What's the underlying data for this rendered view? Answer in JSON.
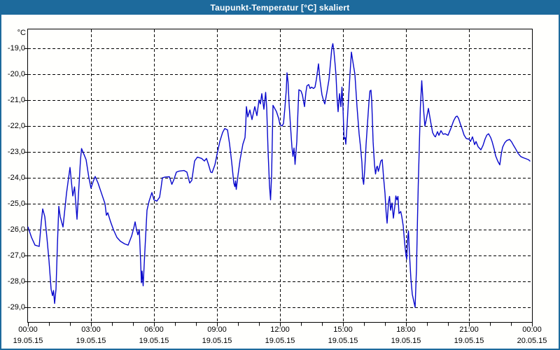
{
  "window": {
    "title": "Taupunkt-Temperatur [°C] skaliert",
    "titlebar_color": "#1d6a9c",
    "frame_color": "#1d6a9c",
    "background_color": "#fffffd"
  },
  "chart_data": {
    "type": "line",
    "title": "Taupunkt-Temperatur [°C] skaliert",
    "grid": {
      "style": "dashed",
      "color": "#000000"
    },
    "legend": "none",
    "series": [
      {
        "name": "Taupunkt-Temperatur",
        "color": "#0808cc"
      }
    ],
    "x_axis": {
      "range_hours": [
        0,
        24
      ],
      "major_tick_every_hours": 3,
      "minor_tick_every_hours": 1,
      "ticks": [
        {
          "time": "00:00",
          "date": "19.05.15"
        },
        {
          "time": "03:00",
          "date": "19.05.15"
        },
        {
          "time": "06:00",
          "date": "19.05.15"
        },
        {
          "time": "09:00",
          "date": "19.05.15"
        },
        {
          "time": "12:00",
          "date": "19.05.15"
        },
        {
          "time": "15:00",
          "date": "19.05.15"
        },
        {
          "time": "18:00",
          "date": "19.05.15"
        },
        {
          "time": "21:00",
          "date": "19.05.15"
        },
        {
          "time": "00:00",
          "date": "20.05.15"
        }
      ]
    },
    "y_axis": {
      "unit": "°C",
      "tick_labels": [
        "-19,0",
        "-20,0",
        "-21,0",
        "-22,0",
        "-23,0",
        "-24,0",
        "-25,0",
        "-26,0",
        "-27,0",
        "-28,0",
        "-29,0"
      ],
      "tick_values": [
        -19,
        -20,
        -21,
        -22,
        -23,
        -24,
        -25,
        -26,
        -27,
        -28,
        -29
      ],
      "ylim": [
        -29.6,
        -18.25
      ]
    },
    "points_minutes_temp": [
      [
        0,
        -25.9
      ],
      [
        10,
        -26.3
      ],
      [
        20,
        -26.6
      ],
      [
        32,
        -26.65
      ],
      [
        38,
        -25.7
      ],
      [
        42,
        -25.2
      ],
      [
        48,
        -25.5
      ],
      [
        54,
        -26.3
      ],
      [
        60,
        -27.2
      ],
      [
        66,
        -28.3
      ],
      [
        70,
        -28.55
      ],
      [
        73,
        -28.35
      ],
      [
        76,
        -28.85
      ],
      [
        80,
        -28.3
      ],
      [
        84,
        -26.6
      ],
      [
        88,
        -25.1
      ],
      [
        92,
        -25.5
      ],
      [
        100,
        -25.9
      ],
      [
        110,
        -24.6
      ],
      [
        120,
        -23.6
      ],
      [
        128,
        -24.7
      ],
      [
        133,
        -24.35
      ],
      [
        140,
        -25.6
      ],
      [
        150,
        -23.3
      ],
      [
        153,
        -22.87
      ],
      [
        160,
        -23.1
      ],
      [
        166,
        -23.3
      ],
      [
        174,
        -24.0
      ],
      [
        180,
        -24.4
      ],
      [
        186,
        -24.15
      ],
      [
        192,
        -23.95
      ],
      [
        200,
        -24.2
      ],
      [
        210,
        -24.6
      ],
      [
        220,
        -25.0
      ],
      [
        224,
        -25.45
      ],
      [
        228,
        -25.35
      ],
      [
        236,
        -25.7
      ],
      [
        244,
        -26.0
      ],
      [
        254,
        -26.3
      ],
      [
        264,
        -26.45
      ],
      [
        276,
        -26.55
      ],
      [
        286,
        -26.6
      ],
      [
        296,
        -26.25
      ],
      [
        302,
        -25.95
      ],
      [
        306,
        -25.7
      ],
      [
        310,
        -26.0
      ],
      [
        314,
        -26.2
      ],
      [
        318,
        -26.0
      ],
      [
        322,
        -27.3
      ],
      [
        324,
        -28.05
      ],
      [
        326,
        -27.6
      ],
      [
        329,
        -28.17
      ],
      [
        334,
        -26.8
      ],
      [
        340,
        -25.25
      ],
      [
        346,
        -24.9
      ],
      [
        354,
        -24.57
      ],
      [
        360,
        -24.85
      ],
      [
        368,
        -24.9
      ],
      [
        376,
        -24.75
      ],
      [
        380,
        -24.4
      ],
      [
        384,
        -24.0
      ],
      [
        392,
        -23.97
      ],
      [
        404,
        -23.96
      ],
      [
        411,
        -24.25
      ],
      [
        416,
        -24.1
      ],
      [
        424,
        -23.78
      ],
      [
        432,
        -23.74
      ],
      [
        446,
        -23.72
      ],
      [
        454,
        -23.78
      ],
      [
        462,
        -24.2
      ],
      [
        468,
        -24.1
      ],
      [
        476,
        -23.35
      ],
      [
        484,
        -23.2
      ],
      [
        496,
        -23.25
      ],
      [
        504,
        -23.35
      ],
      [
        510,
        -23.25
      ],
      [
        516,
        -23.5
      ],
      [
        522,
        -23.78
      ],
      [
        526,
        -23.8
      ],
      [
        534,
        -23.5
      ],
      [
        540,
        -23.1
      ],
      [
        548,
        -22.6
      ],
      [
        556,
        -22.25
      ],
      [
        562,
        -22.1
      ],
      [
        570,
        -22.15
      ],
      [
        576,
        -22.7
      ],
      [
        582,
        -23.4
      ],
      [
        588,
        -24.2
      ],
      [
        591,
        -24.34
      ],
      [
        593,
        -24.12
      ],
      [
        595,
        -24.45
      ],
      [
        600,
        -23.9
      ],
      [
        606,
        -23.3
      ],
      [
        614,
        -22.7
      ],
      [
        620,
        -22.45
      ],
      [
        622,
        -22.0
      ],
      [
        624,
        -21.25
      ],
      [
        628,
        -21.65
      ],
      [
        634,
        -21.38
      ],
      [
        640,
        -21.75
      ],
      [
        648,
        -21.25
      ],
      [
        654,
        -21.6
      ],
      [
        660,
        -21.0
      ],
      [
        664,
        -21.15
      ],
      [
        668,
        -20.75
      ],
      [
        674,
        -21.35
      ],
      [
        679,
        -20.7
      ],
      [
        682,
        -21.3
      ],
      [
        686,
        -23.0
      ],
      [
        690,
        -24.3
      ],
      [
        693,
        -24.85
      ],
      [
        696,
        -23.9
      ],
      [
        700,
        -21.2
      ],
      [
        704,
        -21.3
      ],
      [
        710,
        -21.45
      ],
      [
        716,
        -21.7
      ],
      [
        720,
        -21.95
      ],
      [
        726,
        -22.0
      ],
      [
        730,
        -21.9
      ],
      [
        734,
        -21.3
      ],
      [
        738,
        -20.6
      ],
      [
        740,
        -19.95
      ],
      [
        743,
        -20.3
      ],
      [
        746,
        -21.15
      ],
      [
        750,
        -22.0
      ],
      [
        754,
        -22.8
      ],
      [
        757,
        -23.17
      ],
      [
        760,
        -22.85
      ],
      [
        763,
        -23.48
      ],
      [
        768,
        -22.6
      ],
      [
        772,
        -21.2
      ],
      [
        774,
        -20.6
      ],
      [
        780,
        -20.65
      ],
      [
        784,
        -20.8
      ],
      [
        790,
        -21.25
      ],
      [
        794,
        -20.7
      ],
      [
        797,
        -20.45
      ],
      [
        802,
        -20.4
      ],
      [
        806,
        -20.55
      ],
      [
        810,
        -20.5
      ],
      [
        816,
        -20.55
      ],
      [
        820,
        -20.5
      ],
      [
        824,
        -20.2
      ],
      [
        830,
        -19.6
      ],
      [
        834,
        -20.2
      ],
      [
        840,
        -20.8
      ],
      [
        844,
        -21.0
      ],
      [
        848,
        -21.15
      ],
      [
        854,
        -20.7
      ],
      [
        860,
        -20.2
      ],
      [
        864,
        -19.6
      ],
      [
        868,
        -19.0
      ],
      [
        871,
        -18.82
      ],
      [
        874,
        -19.1
      ],
      [
        878,
        -19.7
      ],
      [
        880,
        -20.05
      ],
      [
        883,
        -20.9
      ],
      [
        886,
        -21.45
      ],
      [
        890,
        -20.75
      ],
      [
        894,
        -21.25
      ],
      [
        897,
        -20.5
      ],
      [
        900,
        -21.3
      ],
      [
        903,
        -22.5
      ],
      [
        906,
        -22.45
      ],
      [
        908,
        -22.7
      ],
      [
        912,
        -21.9
      ],
      [
        916,
        -20.9
      ],
      [
        920,
        -20.0
      ],
      [
        924,
        -19.15
      ],
      [
        928,
        -19.5
      ],
      [
        934,
        -20.0
      ],
      [
        940,
        -21.25
      ],
      [
        946,
        -22.3
      ],
      [
        950,
        -22.8
      ],
      [
        954,
        -23.4
      ],
      [
        956,
        -24.0
      ],
      [
        959,
        -24.25
      ],
      [
        962,
        -23.7
      ],
      [
        966,
        -22.7
      ],
      [
        970,
        -21.9
      ],
      [
        974,
        -21.1
      ],
      [
        977,
        -20.65
      ],
      [
        980,
        -20.62
      ],
      [
        982,
        -21.0
      ],
      [
        986,
        -22.6
      ],
      [
        990,
        -23.5
      ],
      [
        993,
        -23.85
      ],
      [
        996,
        -23.6
      ],
      [
        998,
        -23.55
      ],
      [
        1001,
        -23.75
      ],
      [
        1004,
        -23.6
      ],
      [
        1008,
        -23.35
      ],
      [
        1012,
        -23.3
      ],
      [
        1016,
        -24.0
      ],
      [
        1020,
        -24.6
      ],
      [
        1023,
        -25.3
      ],
      [
        1026,
        -25.75
      ],
      [
        1030,
        -24.95
      ],
      [
        1033,
        -24.72
      ],
      [
        1036,
        -25.25
      ],
      [
        1040,
        -24.97
      ],
      [
        1044,
        -25.56
      ],
      [
        1048,
        -25.1
      ],
      [
        1051,
        -24.7
      ],
      [
        1054,
        -24.85
      ],
      [
        1057,
        -24.72
      ],
      [
        1060,
        -25.38
      ],
      [
        1065,
        -25.3
      ],
      [
        1068,
        -25.5
      ],
      [
        1072,
        -25.85
      ],
      [
        1076,
        -26.5
      ],
      [
        1080,
        -27.0
      ],
      [
        1082,
        -27.15
      ],
      [
        1085,
        -26.3
      ],
      [
        1087,
        -26.05
      ],
      [
        1090,
        -26.95
      ],
      [
        1094,
        -27.9
      ],
      [
        1098,
        -28.5
      ],
      [
        1102,
        -28.75
      ],
      [
        1106,
        -29.0
      ],
      [
        1110,
        -27.5
      ],
      [
        1113,
        -25.5
      ],
      [
        1115,
        -24.3
      ],
      [
        1118,
        -22.8
      ],
      [
        1121,
        -21.3
      ],
      [
        1125,
        -20.25
      ],
      [
        1128,
        -20.9
      ],
      [
        1131,
        -21.5
      ],
      [
        1134,
        -22.0
      ],
      [
        1138,
        -21.75
      ],
      [
        1144,
        -21.32
      ],
      [
        1150,
        -21.8
      ],
      [
        1156,
        -22.25
      ],
      [
        1161,
        -22.38
      ],
      [
        1164,
        -22.42
      ],
      [
        1170,
        -22.22
      ],
      [
        1174,
        -22.36
      ],
      [
        1180,
        -22.18
      ],
      [
        1186,
        -22.32
      ],
      [
        1192,
        -22.3
      ],
      [
        1200,
        -22.36
      ],
      [
        1208,
        -22.1
      ],
      [
        1216,
        -21.8
      ],
      [
        1222,
        -21.65
      ],
      [
        1226,
        -21.62
      ],
      [
        1230,
        -21.7
      ],
      [
        1236,
        -21.95
      ],
      [
        1240,
        -22.1
      ],
      [
        1246,
        -22.35
      ],
      [
        1252,
        -22.48
      ],
      [
        1256,
        -22.5
      ],
      [
        1260,
        -22.5
      ],
      [
        1264,
        -22.6
      ],
      [
        1270,
        -22.42
      ],
      [
        1276,
        -22.72
      ],
      [
        1280,
        -22.6
      ],
      [
        1286,
        -22.8
      ],
      [
        1294,
        -22.92
      ],
      [
        1300,
        -22.75
      ],
      [
        1306,
        -22.5
      ],
      [
        1311,
        -22.35
      ],
      [
        1316,
        -22.3
      ],
      [
        1322,
        -22.45
      ],
      [
        1326,
        -22.6
      ],
      [
        1332,
        -22.9
      ],
      [
        1336,
        -23.15
      ],
      [
        1342,
        -23.35
      ],
      [
        1348,
        -23.5
      ],
      [
        1352,
        -23.1
      ],
      [
        1356,
        -22.82
      ],
      [
        1362,
        -22.65
      ],
      [
        1368,
        -22.56
      ],
      [
        1376,
        -22.52
      ],
      [
        1382,
        -22.62
      ],
      [
        1386,
        -22.72
      ],
      [
        1394,
        -22.9
      ],
      [
        1400,
        -23.05
      ],
      [
        1408,
        -23.18
      ],
      [
        1416,
        -23.23
      ],
      [
        1424,
        -23.27
      ],
      [
        1430,
        -23.3
      ],
      [
        1434,
        -23.35
      ]
    ]
  }
}
